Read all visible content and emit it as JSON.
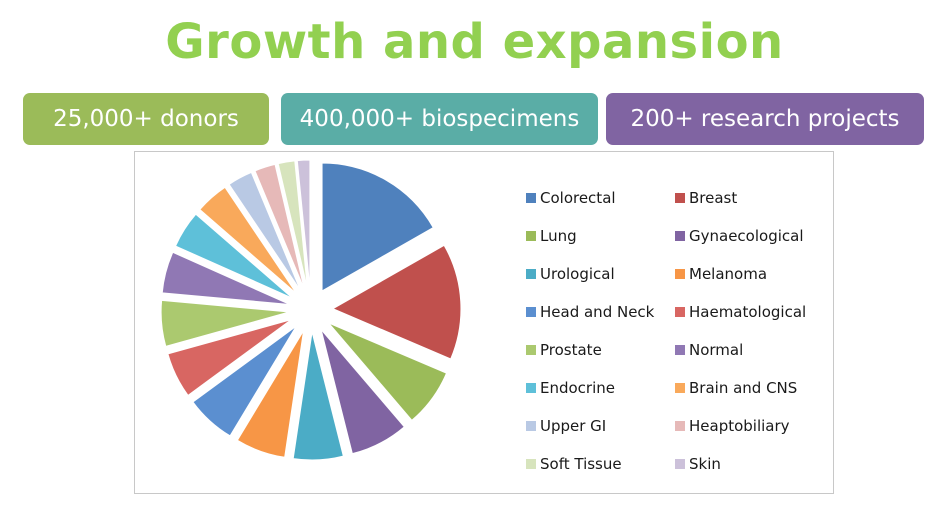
{
  "title": "Growth and expansion",
  "stats": [
    {
      "label": "25,000+ donors",
      "color": "#9bbb59"
    },
    {
      "label": "400,000+ biospecimens",
      "color": "#5aada6"
    },
    {
      "label": "200+ research projects",
      "color": "#8064a2"
    }
  ],
  "chart_data": {
    "type": "pie",
    "title": "",
    "legend_position": "right",
    "exploded": true,
    "categories": [
      "Colorectal",
      "Breast",
      "Lung",
      "Gynaecological",
      "Urological",
      "Melanoma",
      "Head and Neck",
      "Haematological",
      "Prostate",
      "Normal",
      "Endocrine",
      "Brain and CNS",
      "Upper GI",
      "Heaptobiliary",
      "Soft Tissue",
      "Skin"
    ],
    "values": [
      16,
      14,
      7,
      7,
      6,
      6,
      6,
      5.5,
      5.5,
      5,
      4.5,
      4,
      3,
      2.5,
      2,
      1.5
    ],
    "colors": [
      "#4f81bd",
      "#c0504d",
      "#9bbb59",
      "#8064a2",
      "#4bacc6",
      "#f79646",
      "#5b8fd0",
      "#d86662",
      "#abc96f",
      "#9078b4",
      "#5ec0d9",
      "#f9a95b",
      "#b9c9e4",
      "#e6b9b8",
      "#d7e4bd",
      "#ccc1da"
    ]
  }
}
